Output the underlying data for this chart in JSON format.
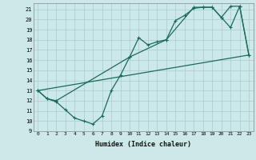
{
  "xlabel": "Humidex (Indice chaleur)",
  "ylabel": "",
  "bg_color": "#cce8e8",
  "grid_color": "#a8cccc",
  "line_color": "#1a6b5a",
  "xlim": [
    -0.5,
    23.5
  ],
  "ylim": [
    9,
    21.6
  ],
  "xtick_vals": [
    0,
    1,
    2,
    3,
    4,
    5,
    6,
    7,
    8,
    9,
    10,
    11,
    12,
    13,
    14,
    15,
    16,
    17,
    18,
    19,
    20,
    21,
    22,
    23
  ],
  "xtick_labels": [
    "0",
    "1",
    "2",
    "3",
    "4",
    "5",
    "6",
    "7",
    "8",
    "9",
    "10",
    "11",
    "12",
    "13",
    "14",
    "15",
    "16",
    "17",
    "18",
    "19",
    "20",
    "21",
    "22",
    "23"
  ],
  "ytick_vals": [
    9,
    10,
    11,
    12,
    13,
    14,
    15,
    16,
    17,
    18,
    19,
    20,
    21
  ],
  "ytick_labels": [
    "9",
    "10",
    "11",
    "12",
    "13",
    "14",
    "15",
    "16",
    "17",
    "18",
    "19",
    "20",
    "21"
  ],
  "line1_x": [
    0,
    1,
    2,
    3,
    4,
    5,
    6,
    7,
    8,
    9,
    10,
    11,
    12,
    13,
    14,
    15,
    16,
    17,
    18,
    19,
    20,
    21,
    22,
    23
  ],
  "line1_y": [
    13.0,
    12.2,
    11.9,
    11.1,
    10.3,
    10.0,
    9.7,
    10.5,
    13.0,
    14.5,
    16.3,
    18.2,
    17.5,
    17.8,
    18.0,
    19.9,
    20.4,
    21.1,
    21.2,
    21.2,
    20.2,
    19.2,
    21.3,
    16.5
  ],
  "line2_x": [
    0,
    1,
    2,
    10,
    14,
    17,
    18,
    19,
    20,
    21,
    22,
    23
  ],
  "line2_y": [
    13.0,
    12.2,
    12.0,
    16.3,
    18.0,
    21.2,
    21.2,
    21.2,
    20.2,
    21.3,
    21.3,
    16.5
  ],
  "line3_x": [
    0,
    23
  ],
  "line3_y": [
    13.0,
    16.5
  ]
}
